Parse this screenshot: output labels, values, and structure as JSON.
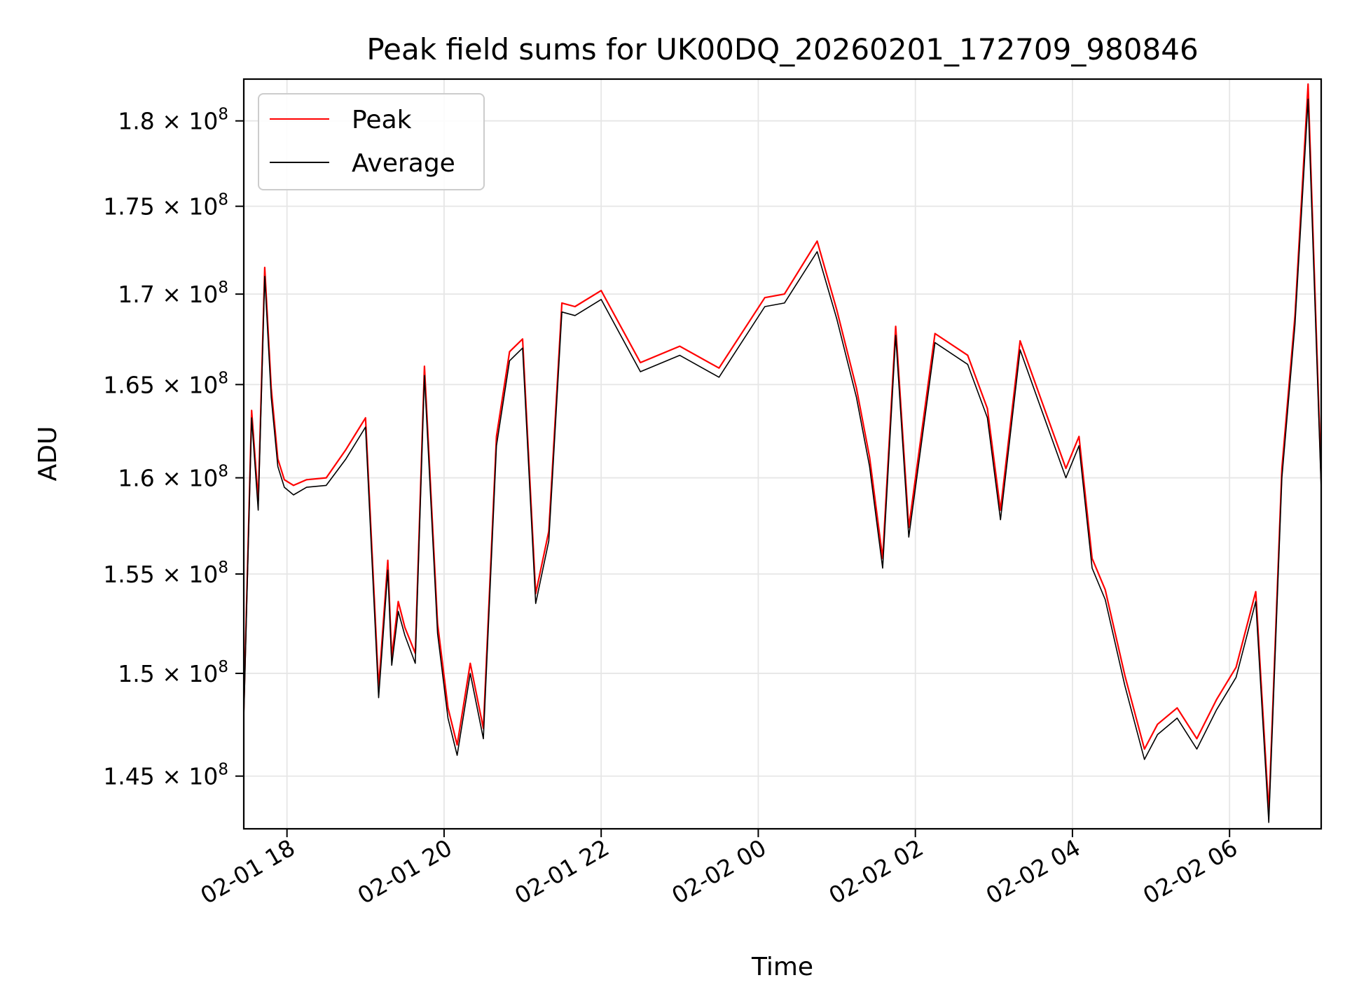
{
  "chart_data": {
    "type": "line",
    "title": "Peak field sums for UK00DQ_20260201_172709_980846",
    "xlabel": "Time",
    "ylabel": "ADU",
    "x_tick_labels": [
      "02-01 18",
      "02-01 20",
      "02-01 22",
      "02-02 00",
      "02-02 02",
      "02-02 04",
      "02-02 06"
    ],
    "y_tick_labels": [
      {
        "mantissa": "1.45",
        "exponent": "8"
      },
      {
        "mantissa": "1.5",
        "exponent": "8"
      },
      {
        "mantissa": "1.55",
        "exponent": "8"
      },
      {
        "mantissa": "1.6",
        "exponent": "8"
      },
      {
        "mantissa": "1.65",
        "exponent": "8"
      },
      {
        "mantissa": "1.7",
        "exponent": "8"
      },
      {
        "mantissa": "1.75",
        "exponent": "8"
      },
      {
        "mantissa": "1.8",
        "exponent": "8"
      }
    ],
    "y_scale": "log",
    "xlim": [
      "2026-02-01 17:27",
      "2026-02-02 07:10"
    ],
    "ylim": [
      142500000,
      182500000
    ],
    "grid": true,
    "legend_position": "upper-left",
    "series": [
      {
        "name": "Peak",
        "color": "#ff0000",
        "x": [
          "2026-02-01 17:27",
          "2026-02-01 17:33",
          "2026-02-01 17:38",
          "2026-02-01 17:43",
          "2026-02-01 17:48",
          "2026-02-01 17:53",
          "2026-02-01 17:58",
          "2026-02-01 18:05",
          "2026-02-01 18:15",
          "2026-02-01 18:30",
          "2026-02-01 18:45",
          "2026-02-01 19:00",
          "2026-02-01 19:10",
          "2026-02-01 19:17",
          "2026-02-01 19:20",
          "2026-02-01 19:25",
          "2026-02-01 19:30",
          "2026-02-01 19:38",
          "2026-02-01 19:45",
          "2026-02-01 19:55",
          "2026-02-01 20:03",
          "2026-02-01 20:10",
          "2026-02-01 20:20",
          "2026-02-01 20:30",
          "2026-02-01 20:40",
          "2026-02-01 20:50",
          "2026-02-01 21:00",
          "2026-02-01 21:10",
          "2026-02-01 21:20",
          "2026-02-01 21:30",
          "2026-02-01 21:40",
          "2026-02-01 22:00",
          "2026-02-01 22:30",
          "2026-02-01 23:00",
          "2026-02-01 23:30",
          "2026-02-02 00:05",
          "2026-02-02 00:20",
          "2026-02-02 00:45",
          "2026-02-02 01:00",
          "2026-02-02 01:15",
          "2026-02-02 01:25",
          "2026-02-02 01:35",
          "2026-02-02 01:45",
          "2026-02-02 01:55",
          "2026-02-02 02:15",
          "2026-02-02 02:40",
          "2026-02-02 02:55",
          "2026-02-02 03:05",
          "2026-02-02 03:20",
          "2026-02-02 03:35",
          "2026-02-02 03:55",
          "2026-02-02 04:05",
          "2026-02-02 04:15",
          "2026-02-02 04:25",
          "2026-02-02 04:40",
          "2026-02-02 04:55",
          "2026-02-02 05:05",
          "2026-02-02 05:20",
          "2026-02-02 05:35",
          "2026-02-02 05:50",
          "2026-02-02 06:05",
          "2026-02-02 06:20",
          "2026-02-02 06:30",
          "2026-02-02 06:40",
          "2026-02-02 06:50",
          "2026-02-02 07:00",
          "2026-02-02 07:10"
        ],
        "y": [
          148200000,
          163600000,
          158800000,
          171500000,
          164800000,
          161000000,
          159900000,
          159600000,
          159900000,
          160000000,
          161500000,
          163200000,
          149300000,
          155700000,
          150800000,
          153600000,
          152300000,
          151000000,
          166000000,
          152500000,
          148300000,
          146500000,
          150500000,
          147300000,
          162200000,
          166800000,
          167500000,
          154000000,
          157200000,
          169500000,
          169300000,
          170200000,
          166200000,
          167100000,
          165900000,
          169800000,
          170000000,
          173000000,
          169100000,
          164800000,
          161100000,
          155800000,
          168200000,
          157400000,
          167800000,
          166600000,
          163700000,
          158300000,
          167400000,
          164400000,
          160500000,
          162200000,
          155800000,
          154200000,
          149900000,
          146300000,
          147500000,
          148300000,
          146800000,
          148700000,
          150300000,
          154100000,
          143300000,
          160500000,
          168800000,
          182200000,
          159900000
        ]
      },
      {
        "name": "Average",
        "color": "#000000",
        "x": [
          "2026-02-01 17:27",
          "2026-02-01 17:33",
          "2026-02-01 17:38",
          "2026-02-01 17:43",
          "2026-02-01 17:48",
          "2026-02-01 17:53",
          "2026-02-01 17:58",
          "2026-02-01 18:05",
          "2026-02-01 18:15",
          "2026-02-01 18:30",
          "2026-02-01 18:45",
          "2026-02-01 19:00",
          "2026-02-01 19:10",
          "2026-02-01 19:17",
          "2026-02-01 19:20",
          "2026-02-01 19:25",
          "2026-02-01 19:30",
          "2026-02-01 19:38",
          "2026-02-01 19:45",
          "2026-02-01 19:55",
          "2026-02-01 20:03",
          "2026-02-01 20:10",
          "2026-02-01 20:20",
          "2026-02-01 20:30",
          "2026-02-01 20:40",
          "2026-02-01 20:50",
          "2026-02-01 21:00",
          "2026-02-01 21:10",
          "2026-02-01 21:20",
          "2026-02-01 21:30",
          "2026-02-01 21:40",
          "2026-02-01 22:00",
          "2026-02-01 22:30",
          "2026-02-01 23:00",
          "2026-02-01 23:30",
          "2026-02-02 00:05",
          "2026-02-02 00:20",
          "2026-02-02 00:45",
          "2026-02-02 01:00",
          "2026-02-02 01:15",
          "2026-02-02 01:25",
          "2026-02-02 01:35",
          "2026-02-02 01:45",
          "2026-02-02 01:55",
          "2026-02-02 02:15",
          "2026-02-02 02:40",
          "2026-02-02 02:55",
          "2026-02-02 03:05",
          "2026-02-02 03:20",
          "2026-02-02 03:35",
          "2026-02-02 03:55",
          "2026-02-02 04:05",
          "2026-02-02 04:15",
          "2026-02-02 04:25",
          "2026-02-02 04:40",
          "2026-02-02 04:55",
          "2026-02-02 05:05",
          "2026-02-02 05:20",
          "2026-02-02 05:35",
          "2026-02-02 05:50",
          "2026-02-02 06:05",
          "2026-02-02 06:20",
          "2026-02-02 06:30",
          "2026-02-02 06:40",
          "2026-02-02 06:50",
          "2026-02-02 07:00",
          "2026-02-02 07:10"
        ],
        "y": [
          147800000,
          163200000,
          158300000,
          171000000,
          164300000,
          160600000,
          159500000,
          159100000,
          159500000,
          159600000,
          161000000,
          162700000,
          148800000,
          155200000,
          150400000,
          153100000,
          151900000,
          150500000,
          165500000,
          152000000,
          147800000,
          146000000,
          150000000,
          146800000,
          161700000,
          166300000,
          167000000,
          153500000,
          156700000,
          169000000,
          168800000,
          169700000,
          165700000,
          166600000,
          165400000,
          169300000,
          169500000,
          172400000,
          168600000,
          164300000,
          160600000,
          155300000,
          167700000,
          156900000,
          167300000,
          166100000,
          163200000,
          157800000,
          166900000,
          163900000,
          160000000,
          161700000,
          155300000,
          153700000,
          149400000,
          145800000,
          147000000,
          147800000,
          146300000,
          148200000,
          149800000,
          153600000,
          142800000,
          160000000,
          168300000,
          181300000,
          159400000
        ]
      }
    ]
  }
}
